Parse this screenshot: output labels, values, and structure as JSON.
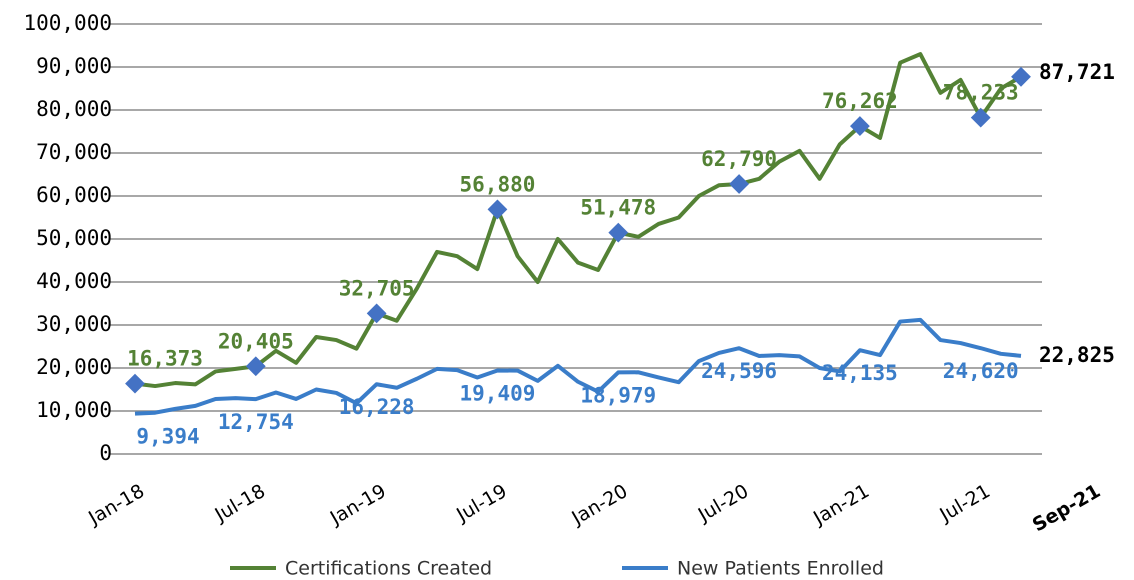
{
  "chart_data": {
    "type": "line",
    "categories": [
      "Jan-18",
      null,
      null,
      null,
      null,
      null,
      "Jul-18",
      null,
      null,
      null,
      null,
      null,
      "Jan-19",
      null,
      null,
      null,
      null,
      null,
      "Jul-19",
      null,
      null,
      null,
      null,
      null,
      "Jan-20",
      null,
      null,
      null,
      null,
      null,
      "Jul-20",
      null,
      null,
      null,
      null,
      null,
      "Jan-21",
      null,
      null,
      null,
      null,
      null,
      "Jul-21",
      null,
      "Sep-21"
    ],
    "series": [
      {
        "name": "Certifications Created",
        "color": "#548235",
        "marker_color": "#4472c4",
        "values": [
          16373,
          15800,
          16500,
          16200,
          19200,
          19800,
          20405,
          24000,
          21200,
          27200,
          26500,
          24500,
          32705,
          31000,
          38500,
          47000,
          46000,
          43000,
          56880,
          46000,
          40000,
          50000,
          44500,
          42800,
          51478,
          50500,
          53500,
          55000,
          60000,
          62500,
          62790,
          64000,
          68000,
          70500,
          64000,
          72000,
          76262,
          73500,
          91000,
          93000,
          84000,
          87000,
          78233,
          85000,
          87721
        ],
        "value_labels": [
          "16,373",
          null,
          null,
          null,
          null,
          null,
          "20,405",
          null,
          null,
          null,
          null,
          null,
          "32,705",
          null,
          null,
          null,
          null,
          null,
          "56,880",
          null,
          null,
          null,
          null,
          null,
          "51,478",
          null,
          null,
          null,
          null,
          null,
          "62,790",
          null,
          null,
          null,
          null,
          null,
          "76,262",
          null,
          null,
          null,
          null,
          null,
          "78,233",
          null,
          "87,721"
        ]
      },
      {
        "name": "New Patients Enrolled",
        "color": "#3a7dc9",
        "values": [
          9394,
          9600,
          10500,
          11200,
          12800,
          13000,
          12754,
          14300,
          12800,
          15000,
          14200,
          11800,
          16228,
          15400,
          17500,
          19800,
          19500,
          17800,
          19409,
          19400,
          17000,
          20500,
          16800,
          14500,
          18979,
          19000,
          17800,
          16700,
          21600,
          23500,
          24596,
          22800,
          23000,
          22700,
          20000,
          19200,
          24135,
          23000,
          30800,
          31200,
          26500,
          25800,
          24620,
          23300,
          22825
        ],
        "value_labels": [
          "9,394",
          null,
          null,
          null,
          null,
          null,
          "12,754",
          null,
          null,
          null,
          null,
          null,
          "16,228",
          null,
          null,
          null,
          null,
          null,
          "19,409",
          null,
          null,
          null,
          null,
          null,
          "18,979",
          null,
          null,
          null,
          null,
          null,
          "24,596",
          null,
          null,
          null,
          null,
          null,
          "24,135",
          null,
          null,
          null,
          null,
          null,
          "24,620",
          null,
          "22,825"
        ]
      }
    ],
    "ylim": [
      0,
      100000
    ],
    "yticks": [
      0,
      {
        "value": 10000,
        "label": "10,000"
      },
      {
        "value": 20000,
        "label": "20,000"
      },
      {
        "value": 30000,
        "label": "30,000"
      },
      {
        "value": 40000,
        "label": "40,000"
      },
      {
        "value": 50000,
        "label": "50,000"
      },
      {
        "value": 60000,
        "label": "60,000"
      },
      {
        "value": 70000,
        "label": "70,000"
      },
      {
        "value": 80000,
        "label": "80,000"
      },
      {
        "value": 90000,
        "label": "90,000"
      },
      {
        "value": 100000,
        "label": "100,000"
      }
    ],
    "grid": true,
    "legend": "bottom"
  }
}
